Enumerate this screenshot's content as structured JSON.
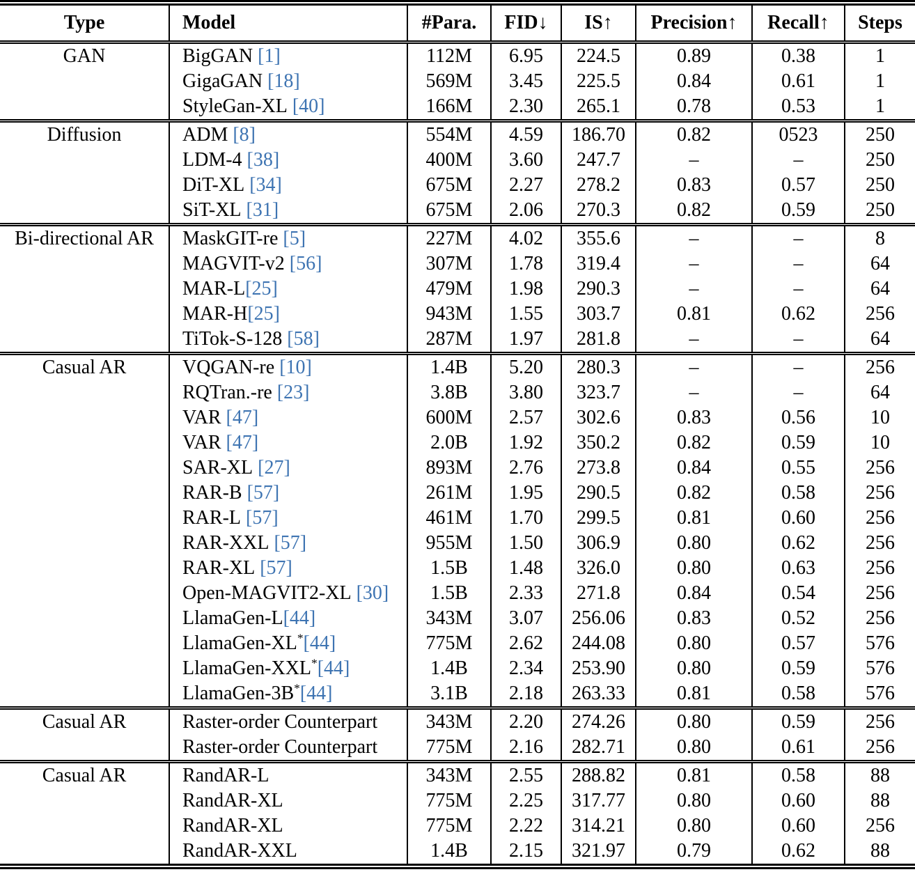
{
  "colors": {
    "citation_link": "#3e74b2",
    "text": "#000000",
    "rules": "#000000",
    "background": "#ffffff"
  },
  "table": {
    "columns": [
      {
        "label": "Type"
      },
      {
        "label": "Model"
      },
      {
        "label": "#Para."
      },
      {
        "label": "FID↓"
      },
      {
        "label": "IS↑"
      },
      {
        "label": "Precision↑"
      },
      {
        "label": "Recall↑"
      },
      {
        "label": "Steps"
      }
    ],
    "sections": [
      {
        "type": "GAN",
        "rows": [
          {
            "model": "BigGAN [1]",
            "para": "112M",
            "fid": "6.95",
            "is": "224.5",
            "precision": "0.89",
            "recall": "0.38",
            "steps": "1"
          },
          {
            "model": "GigaGAN [18]",
            "para": "569M",
            "fid": "3.45",
            "is": "225.5",
            "precision": "0.84",
            "recall": "0.61",
            "steps": "1"
          },
          {
            "model": "StyleGan-XL [40]",
            "para": "166M",
            "fid": "2.30",
            "is": "265.1",
            "precision": "0.78",
            "recall": "0.53",
            "steps": "1"
          }
        ]
      },
      {
        "type": "Diffusion",
        "rows": [
          {
            "model": "ADM [8]",
            "para": "554M",
            "fid": "4.59",
            "is": "186.70",
            "precision": "0.82",
            "recall": "0523",
            "steps": "250"
          },
          {
            "model": "LDM-4 [38]",
            "para": "400M",
            "fid": "3.60",
            "is": "247.7",
            "precision": "–",
            "recall": "–",
            "steps": "250"
          },
          {
            "model": "DiT-XL [34]",
            "para": "675M",
            "fid": "2.27",
            "is": "278.2",
            "precision": "0.83",
            "recall": "0.57",
            "steps": "250"
          },
          {
            "model": "SiT-XL [31]",
            "para": "675M",
            "fid": "2.06",
            "is": "270.3",
            "precision": "0.82",
            "recall": "0.59",
            "steps": "250"
          }
        ]
      },
      {
        "type": "Bi-directional AR",
        "rows": [
          {
            "model": "MaskGIT-re [5]",
            "para": "227M",
            "fid": "4.02",
            "is": "355.6",
            "precision": "–",
            "recall": "–",
            "steps": "8"
          },
          {
            "model": "MAGVIT-v2 [56]",
            "para": "307M",
            "fid": "1.78",
            "is": "319.4",
            "precision": "–",
            "recall": "–",
            "steps": "64"
          },
          {
            "model": "MAR-L[25]",
            "para": "479M",
            "fid": "1.98",
            "is": "290.3",
            "precision": "–",
            "recall": "–",
            "steps": "64"
          },
          {
            "model": "MAR-H[25]",
            "para": "943M",
            "fid": "1.55",
            "is": "303.7",
            "precision": "0.81",
            "recall": "0.62",
            "steps": "256"
          },
          {
            "model": "TiTok-S-128 [58]",
            "para": "287M",
            "fid": "1.97",
            "is": "281.8",
            "precision": "–",
            "recall": "–",
            "steps": "64"
          }
        ]
      },
      {
        "type": "Casual AR",
        "rows": [
          {
            "model": "VQGAN-re [10]",
            "para": "1.4B",
            "fid": "5.20",
            "is": "280.3",
            "precision": "–",
            "recall": "–",
            "steps": "256"
          },
          {
            "model": "RQTran.-re [23]",
            "para": "3.8B",
            "fid": "3.80",
            "is": "323.7",
            "precision": "–",
            "recall": "–",
            "steps": "64"
          },
          {
            "model": "VAR [47]",
            "para": "600M",
            "fid": "2.57",
            "is": "302.6",
            "precision": "0.83",
            "recall": "0.56",
            "steps": "10"
          },
          {
            "model": "VAR [47]",
            "para": "2.0B",
            "fid": "1.92",
            "is": "350.2",
            "precision": "0.82",
            "recall": "0.59",
            "steps": "10"
          },
          {
            "model": "SAR-XL [27]",
            "para": "893M",
            "fid": "2.76",
            "is": "273.8",
            "precision": "0.84",
            "recall": "0.55",
            "steps": "256"
          },
          {
            "model": "RAR-B [57]",
            "para": "261M",
            "fid": "1.95",
            "is": "290.5",
            "precision": "0.82",
            "recall": "0.58",
            "steps": "256"
          },
          {
            "model": "RAR-L [57]",
            "para": "461M",
            "fid": "1.70",
            "is": "299.5",
            "precision": "0.81",
            "recall": "0.60",
            "steps": "256"
          },
          {
            "model": "RAR-XXL [57]",
            "para": "955M",
            "fid": "1.50",
            "is": "306.9",
            "precision": "0.80",
            "recall": "0.62",
            "steps": "256"
          },
          {
            "model": "RAR-XL [57]",
            "para": "1.5B",
            "fid": "1.48",
            "is": "326.0",
            "precision": "0.80",
            "recall": "0.63",
            "steps": "256"
          },
          {
            "model": "Open-MAGVIT2-XL [30]",
            "para": "1.5B",
            "fid": "2.33",
            "is": "271.8",
            "precision": "0.84",
            "recall": "0.54",
            "steps": "256"
          },
          {
            "model": "LlamaGen-L[44]",
            "para": "343M",
            "fid": "3.07",
            "is": "256.06",
            "precision": "0.83",
            "recall": "0.52",
            "steps": "256"
          },
          {
            "model": "LlamaGen-XL*[44]",
            "para": "775M",
            "fid": "2.62",
            "is": "244.08",
            "precision": "0.80",
            "recall": "0.57",
            "steps": "576"
          },
          {
            "model": "LlamaGen-XXL*[44]",
            "para": "1.4B",
            "fid": "2.34",
            "is": "253.90",
            "precision": "0.80",
            "recall": "0.59",
            "steps": "576"
          },
          {
            "model": "LlamaGen-3B*[44]",
            "para": "3.1B",
            "fid": "2.18",
            "is": "263.33",
            "precision": "0.81",
            "recall": "0.58",
            "steps": "576"
          }
        ]
      },
      {
        "type": "Casual AR",
        "rows": [
          {
            "model": "Raster-order Counterpart",
            "para": "343M",
            "fid": "2.20",
            "is": "274.26",
            "precision": "0.80",
            "recall": "0.59",
            "steps": "256"
          },
          {
            "model": "Raster-order Counterpart",
            "para": "775M",
            "fid": "2.16",
            "is": "282.71",
            "precision": "0.80",
            "recall": "0.61",
            "steps": "256"
          }
        ]
      },
      {
        "type": "Casual AR",
        "rows": [
          {
            "model": "RandAR-L",
            "para": "343M",
            "fid": "2.55",
            "is": "288.82",
            "precision": "0.81",
            "recall": "0.58",
            "steps": "88"
          },
          {
            "model": "RandAR-XL",
            "para": "775M",
            "fid": "2.25",
            "is": "317.77",
            "precision": "0.80",
            "recall": "0.60",
            "steps": "88"
          },
          {
            "model": "RandAR-XL",
            "para": "775M",
            "fid": "2.22",
            "is": "314.21",
            "precision": "0.80",
            "recall": "0.60",
            "steps": "256"
          },
          {
            "model": "RandAR-XXL",
            "para": "1.4B",
            "fid": "2.15",
            "is": "321.97",
            "precision": "0.79",
            "recall": "0.62",
            "steps": "88"
          }
        ]
      }
    ]
  }
}
